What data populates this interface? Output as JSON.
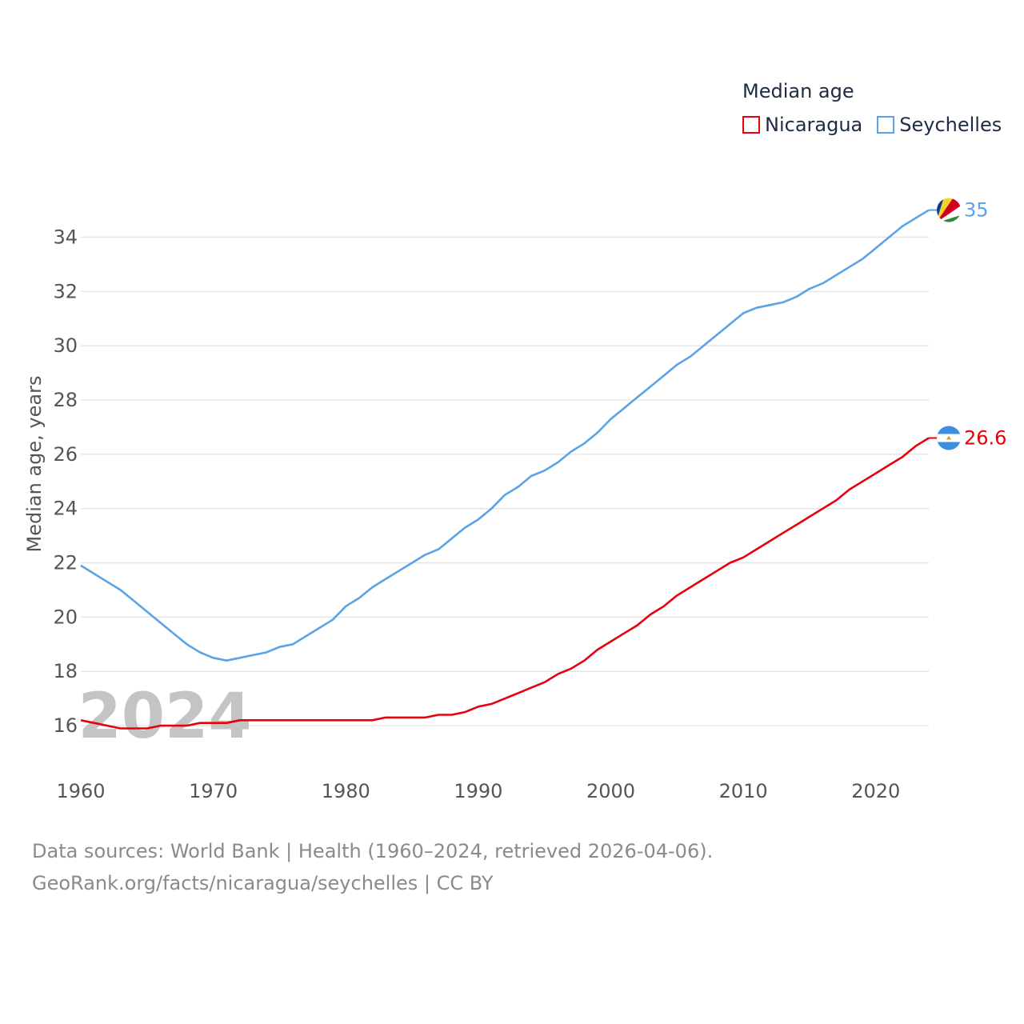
{
  "chart_data": {
    "type": "line",
    "title": "Median age",
    "ylabel": "Median age, years",
    "xlabel": "",
    "xlim": [
      1960,
      2024
    ],
    "ylim": [
      15,
      35.4
    ],
    "x_ticks": [
      1960,
      1970,
      1980,
      1990,
      2000,
      2010,
      2020
    ],
    "y_ticks": [
      16,
      18,
      20,
      22,
      24,
      26,
      28,
      30,
      32,
      34
    ],
    "year_watermark": "2024",
    "x": [
      1960,
      1961,
      1962,
      1963,
      1964,
      1965,
      1966,
      1967,
      1968,
      1969,
      1970,
      1971,
      1972,
      1973,
      1974,
      1975,
      1976,
      1977,
      1978,
      1979,
      1980,
      1981,
      1982,
      1983,
      1984,
      1985,
      1986,
      1987,
      1988,
      1989,
      1990,
      1991,
      1992,
      1993,
      1994,
      1995,
      1996,
      1997,
      1998,
      1999,
      2000,
      2001,
      2002,
      2003,
      2004,
      2005,
      2006,
      2007,
      2008,
      2009,
      2010,
      2011,
      2012,
      2013,
      2014,
      2015,
      2016,
      2017,
      2018,
      2019,
      2020,
      2021,
      2022,
      2023,
      2024
    ],
    "series": [
      {
        "name": "Nicaragua",
        "color": "#e8000b",
        "end_label": "26.6",
        "flag_icon": "nicaragua-flag-icon",
        "values": [
          16.2,
          16.1,
          16.0,
          15.9,
          15.9,
          15.9,
          16.0,
          16.0,
          16.0,
          16.1,
          16.1,
          16.1,
          16.2,
          16.2,
          16.2,
          16.2,
          16.2,
          16.2,
          16.2,
          16.2,
          16.2,
          16.2,
          16.2,
          16.3,
          16.3,
          16.3,
          16.3,
          16.4,
          16.4,
          16.5,
          16.7,
          16.8,
          17.0,
          17.2,
          17.4,
          17.6,
          17.9,
          18.1,
          18.4,
          18.8,
          19.1,
          19.4,
          19.7,
          20.1,
          20.4,
          20.8,
          21.1,
          21.4,
          21.7,
          22.0,
          22.2,
          22.5,
          22.8,
          23.1,
          23.4,
          23.7,
          24.0,
          24.3,
          24.7,
          25.0,
          25.3,
          25.6,
          25.9,
          26.3,
          26.6
        ]
      },
      {
        "name": "Seychelles",
        "color": "#5aa3e6",
        "end_label": "35",
        "flag_icon": "seychelles-flag-icon",
        "values": [
          21.9,
          21.6,
          21.3,
          21.0,
          20.6,
          20.2,
          19.8,
          19.4,
          19.0,
          18.7,
          18.5,
          18.4,
          18.5,
          18.6,
          18.7,
          18.9,
          19.0,
          19.3,
          19.6,
          19.9,
          20.4,
          20.7,
          21.1,
          21.4,
          21.7,
          22.0,
          22.3,
          22.5,
          22.9,
          23.3,
          23.6,
          24.0,
          24.5,
          24.8,
          25.2,
          25.4,
          25.7,
          26.1,
          26.4,
          26.8,
          27.3,
          27.7,
          28.1,
          28.5,
          28.9,
          29.3,
          29.6,
          30.0,
          30.4,
          30.8,
          31.2,
          31.4,
          31.5,
          31.6,
          31.8,
          32.1,
          32.3,
          32.6,
          32.9,
          33.2,
          33.6,
          34.0,
          34.4,
          34.7,
          35.0
        ]
      }
    ]
  },
  "legend": {
    "title": "Median age",
    "items": [
      {
        "label": "Nicaragua",
        "color": "#e8000b"
      },
      {
        "label": "Seychelles",
        "color": "#5aa3e6"
      }
    ]
  },
  "footer": {
    "line1": "Data sources: World Bank | Health (1960–2024, retrieved 2026-04-06).",
    "line2": "GeoRank.org/facts/nicaragua/seychelles | CC BY"
  }
}
